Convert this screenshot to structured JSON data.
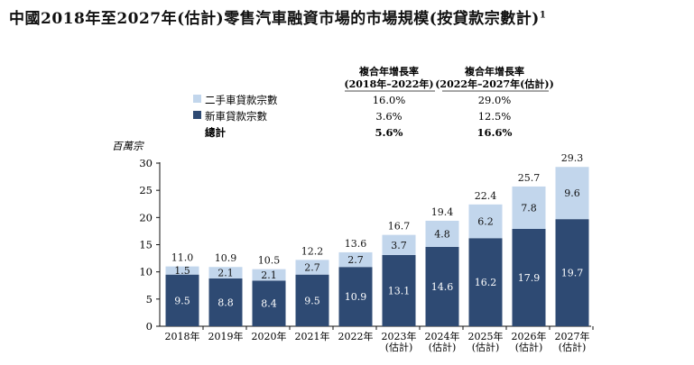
{
  "title": "中國2018年至2027年(估計)零售汽車融資市場的市場規模(按貸款宗數計)",
  "title_footnote": "1",
  "table": {
    "col1_header": [
      "複合年增長率",
      "(2018年–2022年)"
    ],
    "col2_header": [
      "複合年增長率",
      "(2022年–2027年(估計))"
    ],
    "rows": [
      {
        "label": "二手車貸款宗數",
        "c1": "16.0%",
        "c2": "29.0%",
        "color": "#c2d6ec"
      },
      {
        "label": "新車貸款宗數",
        "c1": "3.6%",
        "c2": "12.5%",
        "color": "#2e4a73"
      },
      {
        "label": "總計",
        "c1": "5.6%",
        "c2": "16.6%",
        "color": ""
      }
    ]
  },
  "chart_data": {
    "type": "bar",
    "stacked": true,
    "ylabel": "百萬宗",
    "ylim": [
      0,
      30
    ],
    "yticks": [
      0,
      5,
      10,
      15,
      20,
      25,
      30
    ],
    "categories": [
      [
        "2018年"
      ],
      [
        "2019年"
      ],
      [
        "2020年"
      ],
      [
        "2021年"
      ],
      [
        "2022年"
      ],
      [
        "2023年",
        "(估計)"
      ],
      [
        "2024年",
        "(估計)"
      ],
      [
        "2025年",
        "(估計)"
      ],
      [
        "2026年",
        "(估計)"
      ],
      [
        "2027年",
        "(估計)"
      ]
    ],
    "series": [
      {
        "name": "新車貸款宗數",
        "color": "#2e4a73",
        "values": [
          9.5,
          8.8,
          8.4,
          9.5,
          10.9,
          13.1,
          14.6,
          16.2,
          17.9,
          19.7
        ]
      },
      {
        "name": "二手車貸款宗數",
        "color": "#c2d6ec",
        "values": [
          1.5,
          2.1,
          2.1,
          2.7,
          2.7,
          3.7,
          4.8,
          6.2,
          7.8,
          9.6
        ]
      }
    ],
    "totals": [
      11.0,
      10.9,
      10.5,
      12.2,
      13.6,
      16.7,
      19.4,
      22.4,
      25.7,
      29.3
    ]
  }
}
